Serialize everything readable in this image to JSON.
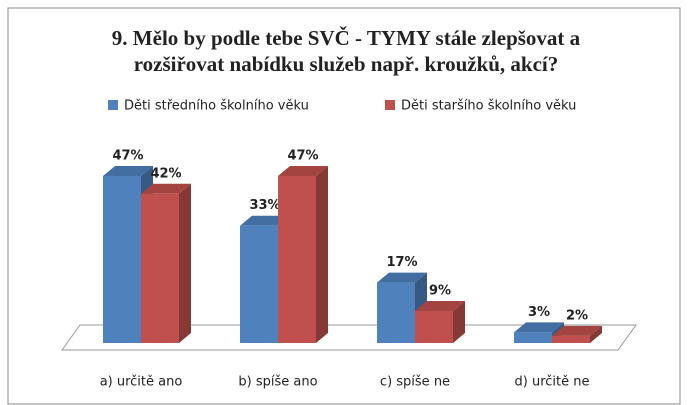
{
  "chart_data": {
    "type": "bar3d",
    "title": [
      "9. Mělo by podle tebe SVČ - TYMY stále zlepšovat a",
      "rozšiřovat nabídku služeb např. kroužků, akcí?"
    ],
    "categories": [
      "a) určitě ano",
      "b) spíše ano",
      "c) spíše ne",
      "d) určitě ne"
    ],
    "series": [
      {
        "name": "Děti středního školního věku",
        "color": "#4f81bd",
        "values": [
          47,
          33,
          17,
          3
        ],
        "value_labels": [
          "47%",
          "33%",
          "17%",
          "3%"
        ]
      },
      {
        "name": "Děti staršího školního věku",
        "color": "#c0504d",
        "values": [
          42,
          47,
          9,
          2
        ],
        "value_labels": [
          "42%",
          "47%",
          "9%",
          "2%"
        ]
      }
    ],
    "legend": "top"
  }
}
